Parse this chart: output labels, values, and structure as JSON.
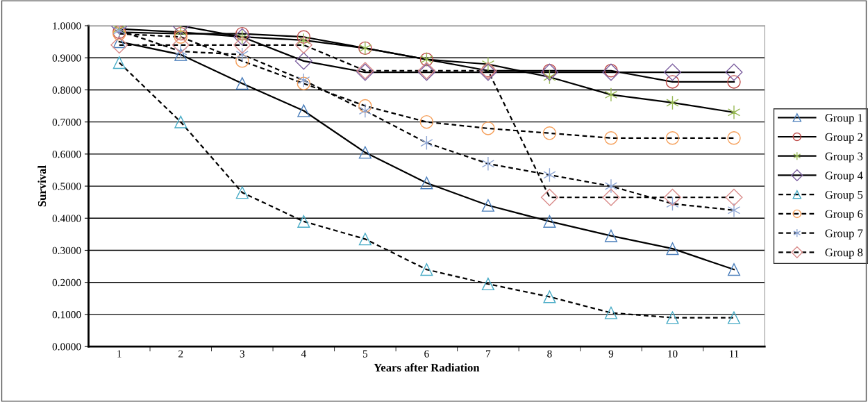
{
  "chart_data": {
    "type": "line",
    "xlabel": "Years after Radiation",
    "ylabel": "Survival",
    "categories": [
      "1",
      "2",
      "3",
      "4",
      "5",
      "6",
      "7",
      "8",
      "9",
      "10",
      "11"
    ],
    "ylim": [
      0,
      1
    ],
    "yticks": [
      {
        "value": 0,
        "label": "0.0000"
      },
      {
        "value": 0.1,
        "label": "0.1000"
      },
      {
        "value": 0.2,
        "label": "0.2000"
      },
      {
        "value": 0.3,
        "label": "0.3000"
      },
      {
        "value": 0.4,
        "label": "0.4000"
      },
      {
        "value": 0.5,
        "label": "0.5000"
      },
      {
        "value": 0.6,
        "label": "0.6000"
      },
      {
        "value": 0.7,
        "label": "0.7000"
      },
      {
        "value": 0.8,
        "label": "0.8000"
      },
      {
        "value": 0.9,
        "label": "0.9000"
      },
      {
        "value": 1,
        "label": "1.0000"
      }
    ],
    "grid": "y",
    "legend": "right",
    "series": [
      {
        "name": "Group 1",
        "color": "#4a7ebb",
        "marker": "triangle",
        "line_style": "solid",
        "values": [
          0.95,
          0.91,
          0.82,
          0.735,
          0.605,
          0.51,
          0.44,
          0.39,
          0.345,
          0.305,
          0.24
        ]
      },
      {
        "name": "Group 2",
        "color": "#be4b48",
        "marker": "circle",
        "line_style": "solid",
        "values": [
          0.98,
          0.975,
          0.975,
          0.965,
          0.93,
          0.895,
          0.86,
          0.86,
          0.86,
          0.825,
          0.825
        ]
      },
      {
        "name": "Group 3",
        "color": "#98b954",
        "marker": "cross",
        "line_style": "solid",
        "values": [
          0.99,
          0.98,
          0.965,
          0.955,
          0.93,
          0.895,
          0.88,
          0.84,
          0.785,
          0.76,
          0.73
        ]
      },
      {
        "name": "Group 4",
        "color": "#7d60a0",
        "marker": "diamond",
        "line_style": "solid",
        "values": [
          1.0,
          1.0,
          0.965,
          0.89,
          0.855,
          0.855,
          0.855,
          0.855,
          0.855,
          0.855,
          0.855
        ]
      },
      {
        "name": "Group 5",
        "color": "#46aac5",
        "marker": "triangle",
        "line_style": "dashed",
        "values": [
          0.885,
          0.7,
          0.48,
          0.39,
          0.335,
          0.24,
          0.195,
          0.155,
          0.105,
          0.09,
          0.09
        ]
      },
      {
        "name": "Group 6",
        "color": "#f59d56",
        "marker": "circle",
        "line_style": "dashed",
        "values": [
          0.975,
          0.965,
          0.89,
          0.82,
          0.75,
          0.7,
          0.68,
          0.665,
          0.65,
          0.65,
          0.65
        ]
      },
      {
        "name": "Group 7",
        "color": "#8da5d3",
        "marker": "cross",
        "line_style": "dashed",
        "values": [
          0.985,
          0.92,
          0.91,
          0.83,
          0.735,
          0.635,
          0.57,
          0.535,
          0.5,
          0.445,
          0.425
        ]
      },
      {
        "name": "Group 8",
        "color": "#d98b8a",
        "marker": "diamond",
        "line_style": "dashed",
        "values": [
          0.94,
          0.94,
          0.94,
          0.94,
          0.86,
          0.86,
          0.86,
          0.465,
          0.465,
          0.465,
          0.465
        ]
      }
    ]
  }
}
